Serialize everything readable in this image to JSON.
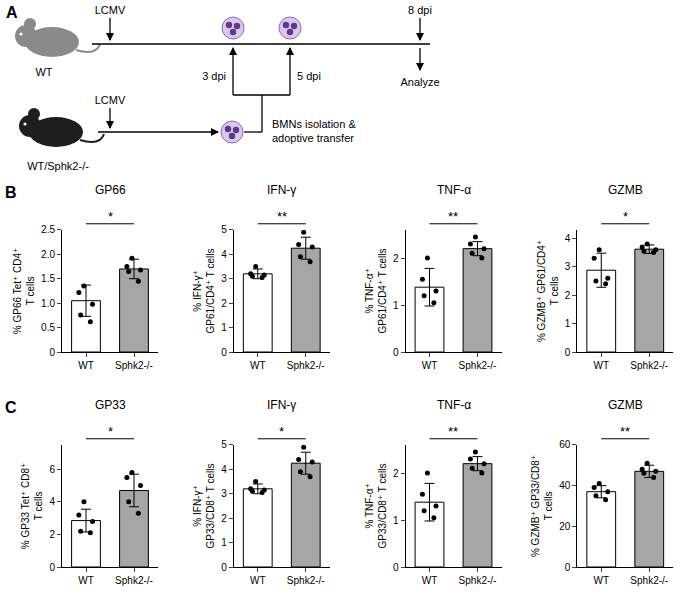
{
  "diagram": {
    "label": "A",
    "recipient": "WT",
    "donor": "WT/Sphk2-/-",
    "infection": "LCMV",
    "transfer_days": [
      "3 dpi",
      "5 dpi"
    ],
    "endpoint_day": "8 dpi",
    "transfer": "BMNs isolation & adoptive transfer",
    "endpoint": "Analyze"
  },
  "chart_data": [
    {
      "panel": "B",
      "type": "bar",
      "title": "GP66",
      "ylabel": "% GP66 Tet⁺ CD4⁺ T cells",
      "categories": [
        "WT",
        "Sphk2-/-"
      ],
      "values": [
        1.05,
        1.7
      ],
      "errors": [
        0.32,
        0.2
      ],
      "points": [
        [
          1.35,
          1.22,
          0.98,
          0.76,
          0.62
        ],
        [
          1.92,
          1.75,
          1.68,
          1.65,
          1.45
        ]
      ],
      "colors": [
        "#ffffff",
        "#a6a6a6"
      ],
      "ylim": [
        0,
        2.5
      ],
      "yticks": [
        0,
        0.5,
        {
          "value": 1,
          "label": "1.0"
        },
        1.5,
        {
          "value": 2,
          "label": "2.0"
        },
        2.5
      ],
      "significance": "*",
      "grid": false
    },
    {
      "panel": "B",
      "type": "bar",
      "title": "IFN-γ",
      "ylabel": "% IFN-γ⁺ GP61/CD4⁺ T cells",
      "categories": [
        "WT",
        "Sphk2-/-"
      ],
      "values": [
        3.2,
        4.25
      ],
      "errors": [
        0.2,
        0.45
      ],
      "points": [
        [
          3.5,
          3.2,
          3.15,
          3.1,
          3.05
        ],
        [
          4.9,
          4.4,
          4.3,
          3.9,
          3.7
        ]
      ],
      "colors": [
        "#ffffff",
        "#a6a6a6"
      ],
      "ylim": [
        0,
        5
      ],
      "yticks": [
        0,
        1,
        2,
        3,
        4,
        5
      ],
      "significance": "**",
      "grid": false
    },
    {
      "panel": "B",
      "type": "bar",
      "title": "TNF-α",
      "ylabel": "% TNF-α⁺ GP61/CD4⁺ T cells",
      "categories": [
        "WT",
        "Sphk2-/-"
      ],
      "values": [
        1.38,
        2.2
      ],
      "errors": [
        0.4,
        0.15
      ],
      "points": [
        [
          2.0,
          1.55,
          1.3,
          1.2,
          1.05
        ],
        [
          2.45,
          2.3,
          2.2,
          2.1,
          2.0
        ]
      ],
      "colors": [
        "#ffffff",
        "#a6a6a6"
      ],
      "ylim": [
        0,
        2.6
      ],
      "yticks": [
        0,
        1,
        2
      ],
      "significance": "**",
      "grid": false
    },
    {
      "panel": "B",
      "type": "bar",
      "title": "GZMB",
      "ylabel": "% GZMB⁺ GP61/CD4⁺ T cells",
      "categories": [
        "WT",
        "Sphk2-/-"
      ],
      "values": [
        2.88,
        3.62
      ],
      "errors": [
        0.6,
        0.15
      ],
      "points": [
        [
          3.6,
          3.3,
          2.6,
          2.5,
          2.4
        ],
        [
          3.8,
          3.7,
          3.6,
          3.55,
          3.5
        ]
      ],
      "colors": [
        "#ffffff",
        "#a6a6a6"
      ],
      "ylim": [
        0,
        4.3
      ],
      "yticks": [
        0,
        1,
        2,
        3,
        4
      ],
      "significance": "*",
      "grid": false
    },
    {
      "panel": "C",
      "type": "bar",
      "title": "GP33",
      "ylabel": "% GP33 Tet⁺ CD8⁺ T cells",
      "categories": [
        "WT",
        "Sphk2-/-"
      ],
      "values": [
        2.85,
        4.7
      ],
      "errors": [
        0.7,
        1.0
      ],
      "points": [
        [
          4.0,
          3.2,
          2.8,
          2.2,
          2.1
        ],
        [
          5.8,
          5.5,
          5.0,
          4.0,
          3.3
        ]
      ],
      "colors": [
        "#ffffff",
        "#a6a6a6"
      ],
      "ylim": [
        0,
        7.5
      ],
      "yticks": [
        0,
        2,
        4,
        6
      ],
      "significance": "*",
      "grid": false
    },
    {
      "panel": "C",
      "type": "bar",
      "title": "IFN-γ",
      "ylabel": "% IFN-γ⁺ GP33/CD8⁺ T cells",
      "categories": [
        "WT",
        "Sphk2-/-"
      ],
      "values": [
        3.2,
        4.25
      ],
      "errors": [
        0.2,
        0.45
      ],
      "points": [
        [
          3.5,
          3.2,
          3.15,
          3.1,
          3.05
        ],
        [
          4.9,
          4.4,
          4.3,
          3.9,
          3.7
        ]
      ],
      "colors": [
        "#ffffff",
        "#a6a6a6"
      ],
      "ylim": [
        0,
        5
      ],
      "yticks": [
        0,
        1,
        2,
        3,
        4,
        5
      ],
      "significance": "*",
      "grid": false
    },
    {
      "panel": "C",
      "type": "bar",
      "title": "TNF-α",
      "ylabel": "% TNF-α⁺ GP33/CD8⁺ T cells",
      "categories": [
        "WT",
        "Sphk2-/-"
      ],
      "values": [
        1.38,
        2.2
      ],
      "errors": [
        0.4,
        0.15
      ],
      "points": [
        [
          2.0,
          1.55,
          1.3,
          1.2,
          1.05
        ],
        [
          2.45,
          2.3,
          2.2,
          2.1,
          2.0
        ]
      ],
      "colors": [
        "#ffffff",
        "#a6a6a6"
      ],
      "ylim": [
        0,
        2.6
      ],
      "yticks": [
        0,
        1,
        2
      ],
      "significance": "**",
      "grid": false
    },
    {
      "panel": "C",
      "type": "bar",
      "title": "GZMB",
      "ylabel": "% GZMB⁺ GP33/CD8⁺ T cells",
      "categories": [
        "WT",
        "Sphk2-/-"
      ],
      "values": [
        37,
        47
      ],
      "errors": [
        3,
        3
      ],
      "points": [
        [
          41,
          39,
          37,
          35,
          33
        ],
        [
          51,
          48,
          47,
          46,
          44
        ]
      ],
      "colors": [
        "#ffffff",
        "#a6a6a6"
      ],
      "ylim": [
        0,
        60
      ],
      "yticks": [
        0,
        20,
        40,
        60
      ],
      "significance": "**",
      "grid": false
    }
  ]
}
